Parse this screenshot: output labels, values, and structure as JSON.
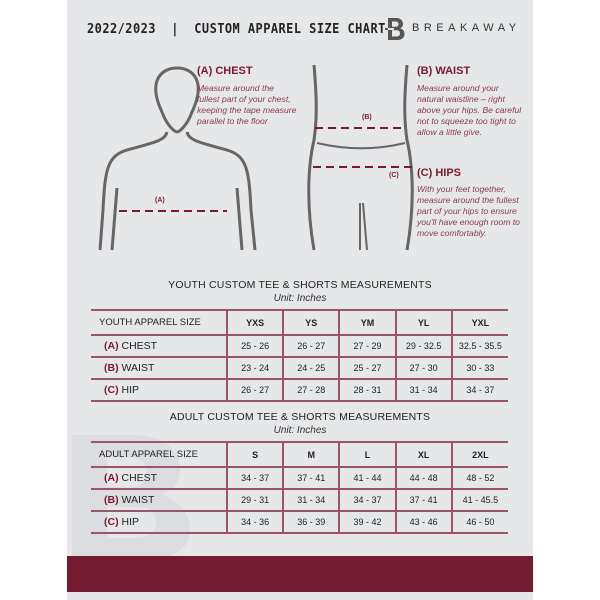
{
  "header": {
    "title": "2022/2023  |  CUSTOM APPAREL SIZE CHART",
    "brand": "BREAKAWAY",
    "logo": "B"
  },
  "guide": {
    "chest": {
      "label": "(A) CHEST",
      "desc": "Measure around the fullest part of your chest, keeping the tape measure parallel to the floor",
      "marker": "(A)"
    },
    "waist": {
      "label": "(B) WAIST",
      "desc": "Measure around your natural waistline – right above your hips. Be careful not to squeeze too tight to allow a little give.",
      "marker": "(B)"
    },
    "hips": {
      "label": "(C) HIPS",
      "desc": "With your feet together, measure around the fullest part of your hips to ensure you'll have enough room to move comfortably.",
      "marker": "(C)"
    }
  },
  "youth": {
    "title": "YOUTH CUSTOM TEE & SHORTS MEASUREMENTS",
    "unit": "Unit: Inches",
    "header": "YOUTH APPAREL SIZE",
    "sizes": [
      "YXS",
      "YS",
      "YM",
      "YL",
      "YXL"
    ],
    "rows": [
      {
        "letter": "(A)",
        "name": "CHEST",
        "values": [
          "25 - 26",
          "26 - 27",
          "27 - 29",
          "29 - 32.5",
          "32.5 - 35.5"
        ]
      },
      {
        "letter": "(B)",
        "name": "WAIST",
        "values": [
          "23 - 24",
          "24 - 25",
          "25 - 27",
          "27 - 30",
          "30 - 33"
        ]
      },
      {
        "letter": "(C)",
        "name": "HIP",
        "values": [
          "26 - 27",
          "27 - 28",
          "28 - 31",
          "31 - 34",
          "34 - 37"
        ]
      }
    ]
  },
  "adult": {
    "title": "ADULT CUSTOM TEE & SHORTS MEASUREMENTS",
    "unit": "Unit: Inches",
    "header": "ADULT APPAREL SIZE",
    "sizes": [
      "S",
      "M",
      "L",
      "XL",
      "2XL"
    ],
    "rows": [
      {
        "letter": "(A)",
        "name": "CHEST",
        "values": [
          "34 - 37",
          "37 - 41",
          "41 - 44",
          "44 - 48",
          "48 - 52"
        ]
      },
      {
        "letter": "(B)",
        "name": "WAIST",
        "values": [
          "29 - 31",
          "31 - 34",
          "34 - 37",
          "37 - 41",
          "41 - 45.5"
        ]
      },
      {
        "letter": "(C)",
        "name": "HIP",
        "values": [
          "34 - 36",
          "36 - 39",
          "39 - 42",
          "43 - 46",
          "46 - 50"
        ]
      }
    ]
  },
  "colors": {
    "accent": "#721b31",
    "background": "#e6e7e9"
  }
}
